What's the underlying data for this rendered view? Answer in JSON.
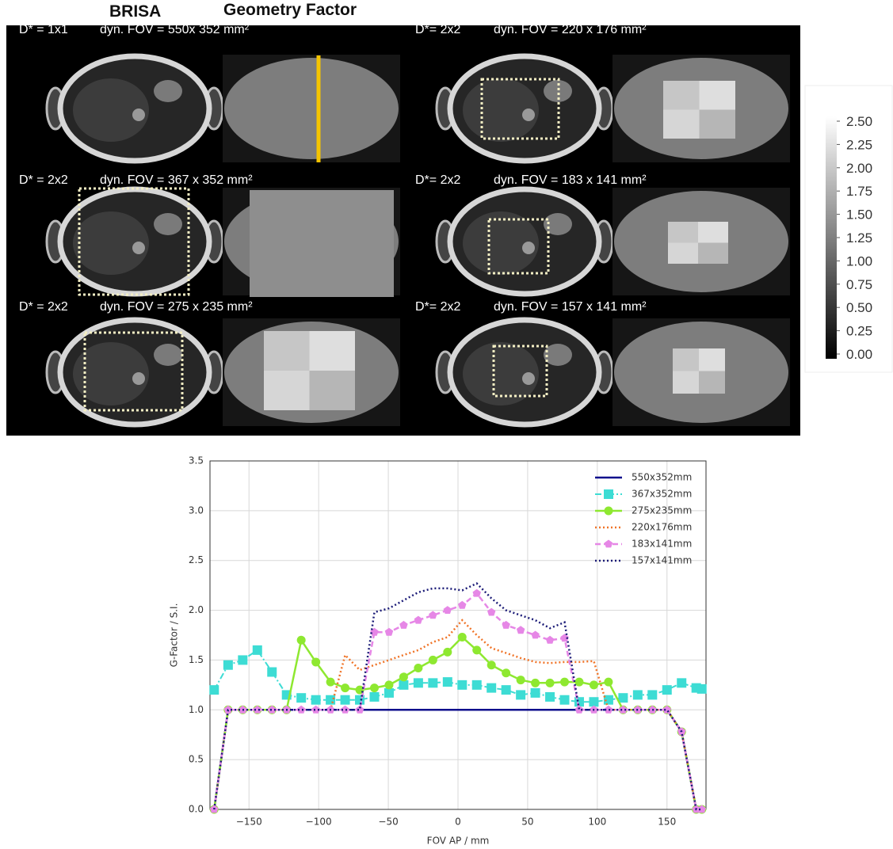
{
  "image_panel": {
    "headers": [
      "BRISA",
      "Geometry Factor"
    ],
    "cells": [
      {
        "dstar": "D* = 1x1",
        "fov": "dyn. FOV = 550x 352 mm²"
      },
      {
        "dstar": "D* = 2x2",
        "fov": "dyn. FOV = 367 x 352 mm²"
      },
      {
        "dstar": "D* = 2x2",
        "fov": "dyn. FOV = 275 x 235 mm²"
      },
      {
        "dstar": "D*= 2x2",
        "fov": "dyn. FOV = 220 x 176 mm²"
      },
      {
        "dstar": "D*= 2x2",
        "fov": "dyn. FOV = 183 x 141 mm²"
      },
      {
        "dstar": "D*= 2x2",
        "fov": "dyn. FOV = 157 x 141 mm²"
      }
    ],
    "colorbar": {
      "lim": [
        0,
        2.5
      ],
      "ticks": [
        {
          "value": 0,
          "label": "0.00"
        },
        {
          "value": 0.25,
          "label": "0.25"
        },
        {
          "value": 0.5,
          "label": "0.50"
        },
        {
          "value": 0.75,
          "label": "0.75"
        },
        {
          "value": 1,
          "label": "1.00"
        },
        {
          "value": 1.25,
          "label": "1.25"
        },
        {
          "value": 1.5,
          "label": "1.50"
        },
        {
          "value": 1.75,
          "label": "1.75"
        },
        {
          "value": 2,
          "label": "2.00"
        },
        {
          "value": 2.25,
          "label": "2.25"
        },
        {
          "value": 2.5,
          "label": "2.50"
        }
      ]
    }
  },
  "chart_data": {
    "type": "line",
    "x_label": "FOV AP / mm",
    "y_label": "G-Factor / S.I.",
    "x": [
      -175,
      -165,
      -154.5,
      -144,
      -133.5,
      -123,
      -112.5,
      -102,
      -91.5,
      -81,
      -70.5,
      -60,
      -49.5,
      -39,
      -28.5,
      -18,
      -7.5,
      3,
      13.5,
      24,
      34.5,
      45,
      55.5,
      66,
      76.5,
      87,
      97.5,
      108,
      118.5,
      129,
      139.5,
      150,
      160.5,
      171,
      175
    ],
    "xlim": [
      -178,
      178
    ],
    "ylim": [
      0,
      3.5
    ],
    "xticks": [
      {
        "value": -150,
        "label": "−150"
      },
      {
        "value": -100,
        "label": "−100"
      },
      {
        "value": -50,
        "label": "−50"
      },
      {
        "value": 0,
        "label": "0"
      },
      {
        "value": 50,
        "label": "50"
      },
      {
        "value": 100,
        "label": "100"
      },
      {
        "value": 150,
        "label": "150"
      }
    ],
    "yticks": [
      {
        "value": 0,
        "label": "0.0"
      },
      {
        "value": 0.5,
        "label": "0.5"
      },
      {
        "value": 1,
        "label": "1.0"
      },
      {
        "value": 1.5,
        "label": "1.5"
      },
      {
        "value": 2,
        "label": "2.0"
      },
      {
        "value": 2.5,
        "label": "2.5"
      },
      {
        "value": 3,
        "label": "3.0"
      },
      {
        "value": 3.5,
        "label": "3.5"
      }
    ],
    "grid": true,
    "legend": "upper right",
    "series": [
      {
        "name": "550x352mm",
        "color": "#0c0c8c",
        "linestyle": "solid",
        "values": [
          0,
          1,
          1,
          1,
          1,
          1,
          1,
          1,
          1,
          1,
          1,
          1,
          1,
          1,
          1,
          1,
          1,
          1,
          1,
          1,
          1,
          1,
          1,
          1,
          1,
          1,
          1,
          1,
          1,
          1,
          1,
          1,
          0.78,
          0,
          0
        ]
      },
      {
        "name": "367x352mm",
        "color": "#3ddcd4",
        "linestyle": "dashdot",
        "marker": "square",
        "values": [
          1.2,
          1.45,
          1.5,
          1.6,
          1.38,
          1.15,
          1.12,
          1.1,
          1.1,
          1.1,
          1.1,
          1.13,
          1.17,
          1.25,
          1.27,
          1.27,
          1.28,
          1.25,
          1.25,
          1.22,
          1.2,
          1.15,
          1.17,
          1.13,
          1.1,
          1.08,
          1.08,
          1.1,
          1.12,
          1.15,
          1.15,
          1.2,
          1.27,
          1.22,
          1.21
        ]
      },
      {
        "name": "275x235mm",
        "color": "#8ee830",
        "linestyle": "solid",
        "marker": "circle",
        "values": [
          0,
          1,
          1,
          1,
          1,
          1,
          1.7,
          1.48,
          1.28,
          1.22,
          1.2,
          1.22,
          1.25,
          1.33,
          1.42,
          1.5,
          1.58,
          1.73,
          1.6,
          1.45,
          1.37,
          1.3,
          1.27,
          1.27,
          1.28,
          1.28,
          1.25,
          1.28,
          1,
          1,
          1,
          1,
          0.78,
          0,
          0
        ]
      },
      {
        "name": "220x176mm",
        "color": "#f07428",
        "linestyle": "dotted",
        "values": [
          0,
          1,
          1,
          1,
          1,
          1,
          1,
          1,
          1,
          1.55,
          1.4,
          1.45,
          1.5,
          1.55,
          1.6,
          1.68,
          1.73,
          1.9,
          1.75,
          1.62,
          1.57,
          1.52,
          1.48,
          1.47,
          1.48,
          1.48,
          1.49,
          1,
          1,
          1,
          1,
          1,
          0.78,
          0,
          0
        ]
      },
      {
        "name": "183x141mm",
        "color": "#e687e6",
        "linestyle": "dashed",
        "marker": "pentagon",
        "values": [
          0,
          1,
          1,
          1,
          1,
          1,
          1,
          1,
          1,
          1,
          1,
          1.78,
          1.78,
          1.85,
          1.9,
          1.95,
          2,
          2.05,
          2.17,
          1.98,
          1.85,
          1.8,
          1.75,
          1.7,
          1.72,
          1,
          1,
          1,
          1,
          1,
          1,
          1,
          0.78,
          0,
          0
        ]
      },
      {
        "name": "157x141mm",
        "color": "#1c1c78",
        "linestyle": "dotted",
        "values": [
          0,
          1,
          1,
          1,
          1,
          1,
          1,
          1,
          1,
          1,
          1,
          1.98,
          2.02,
          2.1,
          2.18,
          2.22,
          2.22,
          2.2,
          2.27,
          2.12,
          2,
          1.95,
          1.9,
          1.82,
          1.88,
          1,
          1,
          1,
          1,
          1,
          1,
          1,
          0.78,
          0,
          0
        ]
      }
    ]
  }
}
